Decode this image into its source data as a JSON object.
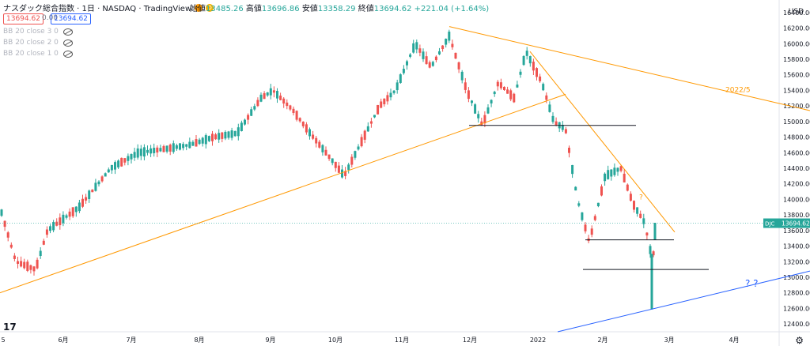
{
  "header": {
    "title": "ナスダック総合指数 · 1日 · NASDAQ · TradingView",
    "flag_d": "D",
    "open_label": "始値",
    "open": "13485.26",
    "high_label": "高値",
    "high": "13696.86",
    "low_label": "安値",
    "low": "13358.29",
    "close_label": "終値",
    "close": "13694.62",
    "change": "+221.04 (+1.64%)"
  },
  "price_boxes": {
    "sell": "13694.62",
    "spread": "0.00",
    "buy": "13694.62"
  },
  "indicators": [
    "BB 20 close 3 0",
    "BB 20 close 2 0",
    "BB 20 close 1 0"
  ],
  "currency": "USD",
  "logo": "17",
  "gear": "⚙",
  "chart_data": {
    "type": "candlestick",
    "x_labels": [
      "5",
      "6月",
      "7月",
      "8月",
      "9月",
      "10月",
      "11月",
      "12月",
      "2022",
      "2月",
      "3月",
      "4月"
    ],
    "y_ticks": [
      12400,
      12600,
      12800,
      13000,
      13200,
      13400,
      13600,
      13800,
      14000,
      14200,
      14400,
      14600,
      14800,
      15000,
      15200,
      15400,
      15600,
      15800,
      16000,
      16200,
      16400
    ],
    "ylim": [
      12300,
      16500
    ],
    "last_price": 13694.62,
    "last_label": "DJC",
    "annotations": [
      {
        "text": "2022/5",
        "color": "#ff9800"
      },
      {
        "text": "?",
        "color": "#ff9800"
      },
      {
        "text": "? ?",
        "color": "#2962ff"
      }
    ],
    "colors": {
      "up": "#26a69a",
      "down": "#ef5350",
      "trend": "#ff9800",
      "support": "#2962ff",
      "level": "#131722"
    }
  }
}
